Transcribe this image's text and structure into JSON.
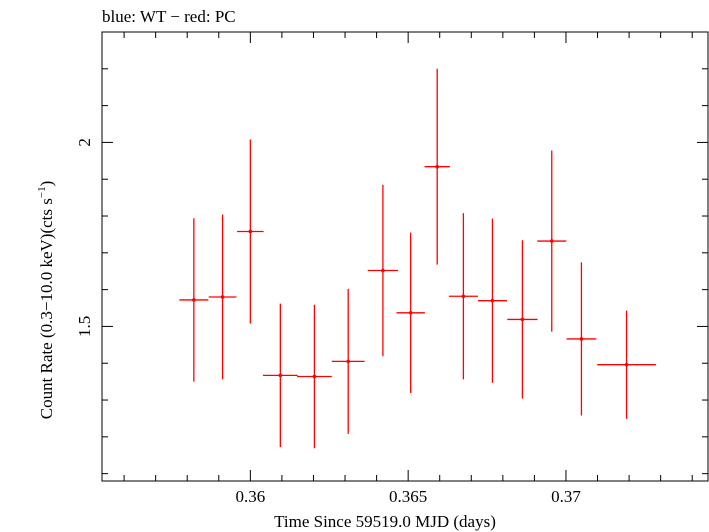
{
  "chart_data": {
    "type": "scatter",
    "title": "blue: WT − red: PC",
    "xlabel": "Time Since 59519.0 MJD (days)",
    "ylabel": "Count Rate (0.3−10.0 keV)(cts s",
    "ylabel_sup": "−1",
    "ylabel_end": ")",
    "xlim": [
      0.3553,
      0.3745
    ],
    "ylim": [
      1.08,
      2.3
    ],
    "x_ticks_major": [
      0.36,
      0.365,
      0.37
    ],
    "x_tick_labels": [
      "0.36",
      "0.365",
      "0.37"
    ],
    "x_ticks_minor_step": 0.001,
    "y_ticks_major": [
      1.5,
      2.0
    ],
    "y_tick_labels": [
      "1.5",
      "2"
    ],
    "y_ticks_minor_step": 0.1,
    "grid": false,
    "series": [
      {
        "color": "#ff0000",
        "points": [
          {
            "x": 0.35821,
            "xerr": 0.00046,
            "y": 1.572,
            "yerr": 0.222
          },
          {
            "x": 0.35912,
            "xerr": 0.00044,
            "y": 1.58,
            "yerr": 0.224
          },
          {
            "x": 0.36,
            "xerr": 0.00042,
            "y": 1.758,
            "yerr": 0.25
          },
          {
            "x": 0.36095,
            "xerr": 0.00055,
            "y": 1.367,
            "yerr": 0.195
          },
          {
            "x": 0.36203,
            "xerr": 0.00055,
            "y": 1.364,
            "yerr": 0.195
          },
          {
            "x": 0.3631,
            "xerr": 0.00052,
            "y": 1.405,
            "yerr": 0.197
          },
          {
            "x": 0.3642,
            "xerr": 0.00048,
            "y": 1.652,
            "yerr": 0.233
          },
          {
            "x": 0.36508,
            "xerr": 0.00045,
            "y": 1.537,
            "yerr": 0.218
          },
          {
            "x": 0.36592,
            "xerr": 0.0004,
            "y": 1.934,
            "yerr": 0.266
          },
          {
            "x": 0.36675,
            "xerr": 0.00046,
            "y": 1.582,
            "yerr": 0.226
          },
          {
            "x": 0.36767,
            "xerr": 0.00046,
            "y": 1.57,
            "yerr": 0.223
          },
          {
            "x": 0.36862,
            "xerr": 0.00048,
            "y": 1.519,
            "yerr": 0.215
          },
          {
            "x": 0.36955,
            "xerr": 0.00046,
            "y": 1.732,
            "yerr": 0.246
          },
          {
            "x": 0.37049,
            "xerr": 0.00047,
            "y": 1.466,
            "yerr": 0.208
          },
          {
            "x": 0.37192,
            "xerr": 0.00093,
            "y": 1.396,
            "yerr": 0.147
          }
        ]
      }
    ]
  }
}
